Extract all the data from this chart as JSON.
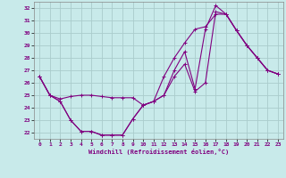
{
  "xlabel": "Windchill (Refroidissement éolien,°C)",
  "bg_color": "#c8eaea",
  "line_color": "#800080",
  "grid_color": "#aacccc",
  "xlim": [
    -0.5,
    23.5
  ],
  "ylim": [
    21.5,
    32.5
  ],
  "xticks": [
    0,
    1,
    2,
    3,
    4,
    5,
    6,
    7,
    8,
    9,
    10,
    11,
    12,
    13,
    14,
    15,
    16,
    17,
    18,
    19,
    20,
    21,
    22,
    23
  ],
  "yticks": [
    22,
    23,
    24,
    25,
    26,
    27,
    28,
    29,
    30,
    31,
    32
  ],
  "line1_x": [
    0,
    1,
    2,
    3,
    4,
    5,
    6,
    7,
    8,
    9,
    10,
    11,
    12,
    13,
    14,
    15,
    16,
    17,
    18,
    19,
    20,
    21,
    22,
    23
  ],
  "line1_y": [
    26.5,
    25.0,
    24.7,
    24.9,
    25.0,
    25.0,
    24.9,
    24.8,
    24.8,
    24.8,
    24.2,
    24.5,
    26.5,
    28.0,
    29.2,
    30.3,
    30.5,
    31.5,
    31.5,
    30.2,
    29.0,
    28.0,
    27.0,
    26.7
  ],
  "line2_x": [
    0,
    1,
    2,
    3,
    4,
    5,
    6,
    7,
    8,
    9,
    10,
    11,
    12,
    13,
    14,
    15,
    16,
    17,
    18,
    19,
    20,
    21,
    22,
    23
  ],
  "line2_y": [
    26.5,
    25.0,
    24.5,
    23.0,
    22.1,
    22.1,
    21.8,
    21.8,
    21.8,
    23.1,
    24.2,
    24.5,
    25.0,
    27.0,
    28.5,
    25.5,
    30.3,
    32.2,
    31.5,
    30.2,
    29.0,
    28.0,
    27.0,
    26.7
  ],
  "line3_x": [
    0,
    1,
    2,
    3,
    4,
    5,
    6,
    7,
    8,
    9,
    10,
    11,
    12,
    13,
    14,
    15,
    16,
    17,
    18,
    19,
    20,
    21,
    22,
    23
  ],
  "line3_y": [
    26.5,
    25.0,
    24.5,
    23.0,
    22.1,
    22.1,
    21.8,
    21.8,
    21.8,
    23.1,
    24.2,
    24.5,
    25.0,
    26.5,
    27.5,
    25.3,
    26.0,
    31.7,
    31.5,
    30.2,
    29.0,
    28.0,
    27.0,
    26.7
  ]
}
